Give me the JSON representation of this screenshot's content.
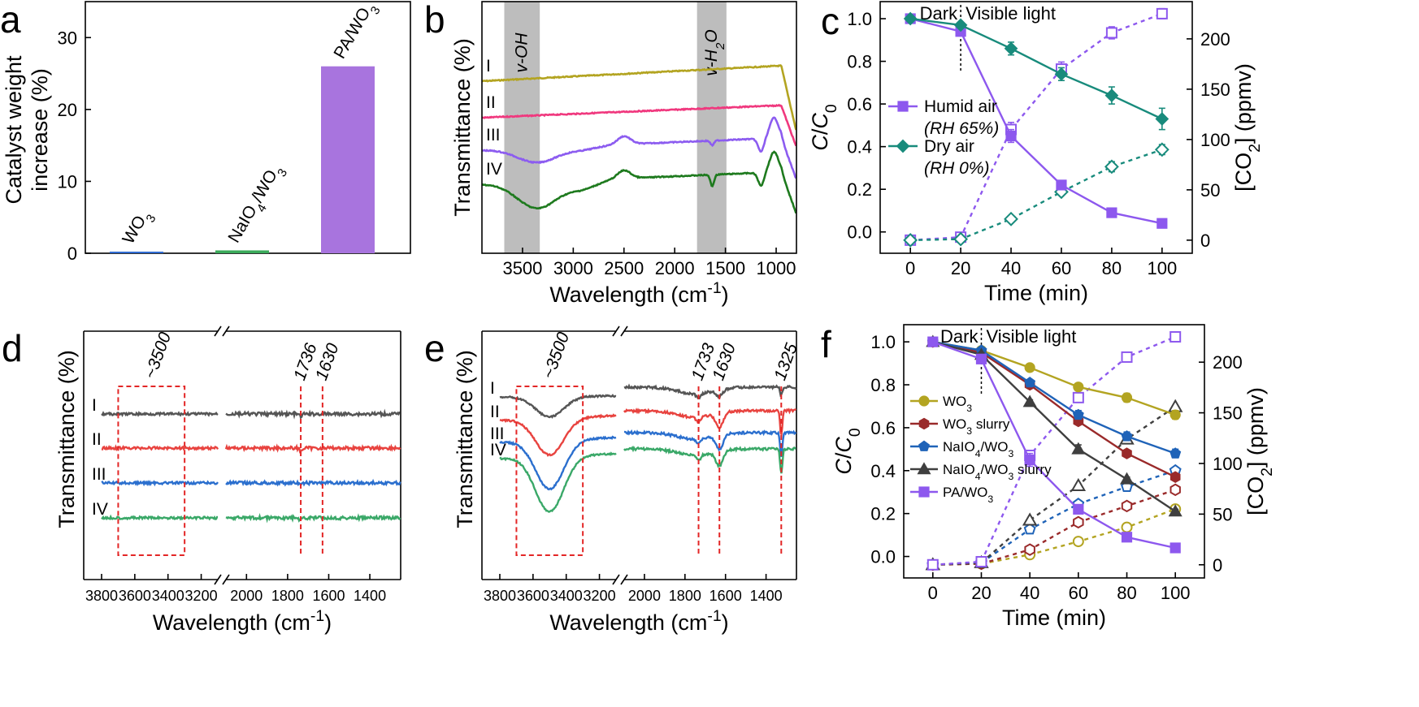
{
  "chart_data": [
    {
      "panel": "a",
      "type": "bar",
      "ylabel_lines": [
        "Catalyst weight",
        "increase (%)"
      ],
      "ylim": [
        0,
        35
      ],
      "yticks": [
        0,
        10,
        20,
        30
      ],
      "categories": [
        "WO3",
        "NaIO4/WO3",
        "PA/WO3"
      ],
      "category_labels": [
        {
          "main": "WO",
          "sub": "3",
          "after": ""
        },
        {
          "main": "NaIO",
          "sub": "4",
          "after": "/WO",
          "sub2": "3"
        },
        {
          "main": "PA/WO",
          "sub": "3",
          "after": ""
        }
      ],
      "values": [
        0.2,
        0.4,
        26
      ],
      "colors": [
        "#2f6bd2",
        "#3aaa5a",
        "#a874de"
      ]
    },
    {
      "panel": "b",
      "type": "line",
      "xlabel": "Wavelength (cm",
      "xlabel_sup": "-1",
      "xlabel_end": ")",
      "ylabel": "Transmittance (%)",
      "xlim": [
        3900,
        800
      ],
      "xticks": [
        3500,
        3000,
        2500,
        2000,
        1500,
        1000
      ],
      "bands": [
        {
          "from": 3680,
          "to": 3330,
          "label": "v-OH"
        },
        {
          "from": 1780,
          "to": 1490,
          "label": "v-H",
          "sub": "2",
          "after": "O"
        }
      ],
      "series": [
        {
          "name": "I",
          "color": "#b3a421",
          "offset": 0.0
        },
        {
          "name": "II",
          "color": "#f0387e",
          "offset": 0.13
        },
        {
          "name": "III",
          "color": "#8c5cf0",
          "offset": 0.26
        },
        {
          "name": "IV",
          "color": "#1e7a1e",
          "offset": 0.4
        }
      ]
    },
    {
      "panel": "c",
      "type": "line",
      "xlabel": "Time (min)",
      "ylabel": "C/C",
      "ylabel_sub": "0",
      "y2label": "[CO",
      "y2label_sub": "2",
      "y2label_end": "] (ppmv)",
      "xlim": [
        -12,
        112
      ],
      "ylim": [
        -0.1,
        1.08
      ],
      "y2lim": [
        -13,
        237
      ],
      "xticks": [
        0,
        20,
        40,
        60,
        80,
        100
      ],
      "yticks": [
        0.0,
        0.2,
        0.4,
        0.6,
        0.8,
        1.0
      ],
      "y2ticks": [
        0,
        50,
        100,
        150,
        200
      ],
      "dark_label": "Dark",
      "light_label": "Visible light",
      "divider_x": 20,
      "legend": [
        {
          "name": "Humid air",
          "note": "(RH 65%)"
        },
        {
          "name": "Dry air",
          "note": "(RH 0%)"
        }
      ],
      "series": [
        {
          "name": "Humid air C/C0",
          "color": "#8d58ee",
          "marker": "square",
          "x": [
            0,
            20,
            40,
            60,
            80,
            100
          ],
          "y": [
            1.0,
            0.94,
            0.45,
            0.22,
            0.09,
            0.04
          ],
          "err": [
            0.01,
            0.02,
            0.03,
            0.02,
            0.01,
            0.01
          ]
        },
        {
          "name": "Dry air C/C0",
          "color": "#188b7c",
          "marker": "diamond",
          "x": [
            0,
            20,
            40,
            60,
            80,
            100
          ],
          "y": [
            1.0,
            0.97,
            0.86,
            0.74,
            0.64,
            0.53
          ],
          "err": [
            0.01,
            0.01,
            0.03,
            0.03,
            0.04,
            0.05
          ]
        },
        {
          "name": "Humid air CO2",
          "color": "#8d58ee",
          "marker": "open-square",
          "axis": "right",
          "x": [
            0,
            20,
            40,
            60,
            80,
            100
          ],
          "y": [
            0,
            3,
            110,
            170,
            206,
            225
          ],
          "err": [
            1,
            2,
            7,
            7,
            6,
            5
          ]
        },
        {
          "name": "Dry air CO2",
          "color": "#188b7c",
          "marker": "open-diamond",
          "axis": "right",
          "x": [
            0,
            20,
            40,
            60,
            80,
            100
          ],
          "y": [
            0,
            1,
            21,
            48,
            73,
            90
          ],
          "err": [
            1,
            1,
            2,
            3,
            5,
            5
          ]
        }
      ]
    },
    {
      "panel": "d",
      "type": "line",
      "xlabel": "Wavelength (cm",
      "xlabel_sup": "-1",
      "xlabel_end": ")",
      "ylabel": "Transmittance (%)",
      "xticks_left": [
        3800,
        3600,
        3400,
        3200
      ],
      "xticks_right": [
        2000,
        1800,
        1600,
        1400
      ],
      "box_label": "~3500",
      "line_labels": [
        "1736",
        "1630"
      ],
      "series": [
        {
          "name": "I",
          "color": "#555555"
        },
        {
          "name": "II",
          "color": "#e8433f"
        },
        {
          "name": "III",
          "color": "#2b6fce"
        },
        {
          "name": "IV",
          "color": "#3aa868"
        }
      ]
    },
    {
      "panel": "e",
      "type": "line",
      "xlabel": "Wavelength (cm",
      "xlabel_sup": "-1",
      "xlabel_end": ")",
      "ylabel": "Transmittance (%)",
      "xticks_left": [
        3800,
        3600,
        3400,
        3200
      ],
      "xticks_right": [
        2000,
        1800,
        1600,
        1400
      ],
      "box_label": "~3500",
      "line_labels": [
        "1733",
        "1630",
        "1325"
      ],
      "series": [
        {
          "name": "I",
          "color": "#555555"
        },
        {
          "name": "II",
          "color": "#e8433f"
        },
        {
          "name": "III",
          "color": "#2b6fce"
        },
        {
          "name": "IV",
          "color": "#3aa868"
        }
      ]
    },
    {
      "panel": "f",
      "type": "line",
      "xlabel": "Time (min)",
      "ylabel": "C/C",
      "ylabel_sub": "0",
      "y2label": "[CO",
      "y2label_sub": "2",
      "y2label_end": "] (ppmv)",
      "xlim": [
        -12,
        112
      ],
      "ylim": [
        -0.1,
        1.08
      ],
      "y2lim": [
        -13,
        237
      ],
      "xticks": [
        0,
        20,
        40,
        60,
        80,
        100
      ],
      "yticks": [
        0.0,
        0.2,
        0.4,
        0.6,
        0.8,
        1.0
      ],
      "y2ticks": [
        0,
        50,
        100,
        150,
        200
      ],
      "dark_label": "Dark",
      "light_label": "Visible light",
      "divider_x": 20,
      "legend": [
        {
          "main": "WO",
          "sub": "3",
          "after": ""
        },
        {
          "main": "WO",
          "sub": "3",
          "after": " slurry"
        },
        {
          "main": "NaIO",
          "sub": "4",
          "after": "/WO",
          "sub2": "3"
        },
        {
          "main": "NaIO",
          "sub": "4",
          "after": "/WO",
          "sub2": "3",
          "after2": " slurry"
        },
        {
          "main": "PA/WO",
          "sub": "3",
          "after": ""
        }
      ],
      "series": [
        {
          "name": "WO3",
          "color": "#b3a421",
          "marker": "circle",
          "x": [
            0,
            20,
            40,
            60,
            80,
            100
          ],
          "y": [
            1.0,
            0.96,
            0.88,
            0.79,
            0.74,
            0.66
          ],
          "err": [
            0.01,
            0.01,
            0.01,
            0.01,
            0.02,
            0.02
          ],
          "co2": [
            0,
            1,
            10,
            23,
            37,
            55
          ]
        },
        {
          "name": "WO3 slurry",
          "color": "#9a2a2a",
          "marker": "hexagon",
          "x": [
            0,
            20,
            40,
            60,
            80,
            100
          ],
          "y": [
            1.0,
            0.95,
            0.8,
            0.63,
            0.48,
            0.37
          ],
          "err": [
            0.01,
            0.01,
            0.01,
            0.01,
            0.01,
            0.01
          ],
          "co2": [
            0,
            1,
            15,
            42,
            58,
            74
          ]
        },
        {
          "name": "NaIO4/WO3",
          "color": "#1f63b8",
          "marker": "pentagon",
          "x": [
            0,
            20,
            40,
            60,
            80,
            100
          ],
          "y": [
            1.0,
            0.96,
            0.81,
            0.66,
            0.56,
            0.48
          ],
          "err": [
            0.01,
            0.01,
            0.01,
            0.02,
            0.02,
            0.02
          ],
          "co2": [
            0,
            2,
            35,
            60,
            77,
            93
          ]
        },
        {
          "name": "NaIO4/WO3 slurry",
          "color": "#3f3f3f",
          "marker": "triangle",
          "x": [
            0,
            20,
            40,
            60,
            80,
            100
          ],
          "y": [
            1.0,
            0.94,
            0.72,
            0.5,
            0.36,
            0.21
          ],
          "err": [
            0.01,
            0.01,
            0.01,
            0.02,
            0.01,
            0.01
          ],
          "co2": [
            0,
            2,
            44,
            78,
            124,
            156
          ]
        },
        {
          "name": "PA/WO3",
          "color": "#8d58ee",
          "marker": "square",
          "x": [
            0,
            20,
            40,
            60,
            80,
            100
          ],
          "y": [
            1.0,
            0.92,
            0.45,
            0.22,
            0.09,
            0.04
          ],
          "err": [
            0.01,
            0.02,
            0.03,
            0.02,
            0.01,
            0.01
          ],
          "co2": [
            0,
            3,
            108,
            165,
            205,
            225
          ]
        }
      ]
    }
  ],
  "ui": {
    "letters": [
      "a",
      "b",
      "c",
      "d",
      "e",
      "f"
    ]
  }
}
